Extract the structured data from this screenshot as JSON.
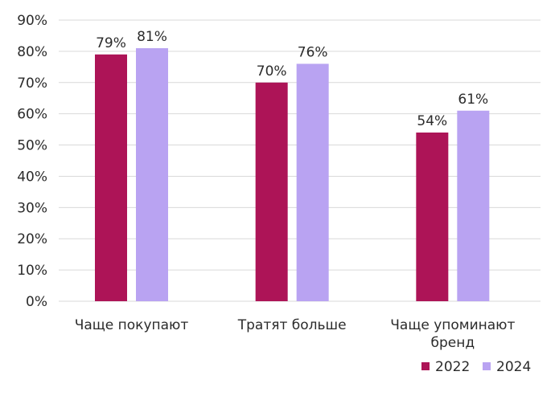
{
  "chart_data": {
    "type": "bar",
    "categories": [
      [
        "Чаще покупают"
      ],
      [
        "Тратят больше"
      ],
      [
        "Чаще упоминают",
        "бренд"
      ]
    ],
    "series": [
      {
        "name": "2022",
        "values": [
          79,
          70,
          54
        ],
        "labels": [
          "79%",
          "70%",
          "54%"
        ],
        "color": "#ad1457"
      },
      {
        "name": "2024",
        "values": [
          81,
          76,
          61
        ],
        "labels": [
          "81%",
          "76%",
          "61%"
        ],
        "color": "#b9a3f2"
      }
    ],
    "y_ticks": [
      "0%",
      "10%",
      "20%",
      "30%",
      "40%",
      "50%",
      "60%",
      "70%",
      "80%",
      "90%"
    ],
    "ylim": [
      0,
      90
    ],
    "grid": true,
    "legend_position": "bottom-right"
  }
}
